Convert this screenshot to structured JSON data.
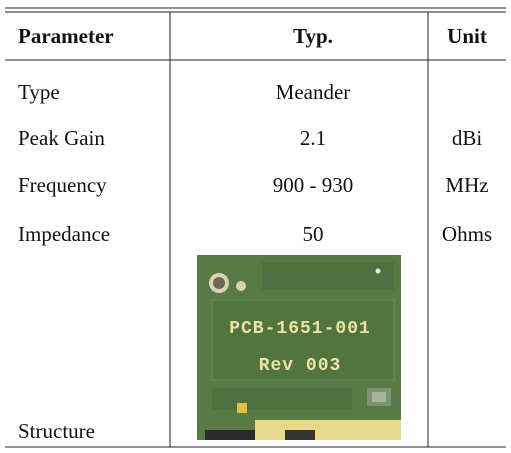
{
  "table": {
    "header": [
      "Parameter",
      "Typ.",
      "Unit"
    ],
    "rows": [
      {
        "parameter": "Type",
        "typ": "Meander"
      },
      {
        "parameter": "Peak Gain",
        "typ": "2.1",
        "unit": "dBi"
      },
      {
        "parameter": "Frequency",
        "typ": "900 - 930",
        "unit": "MHz"
      },
      {
        "parameter": "Impedance",
        "typ": "50",
        "unit": "Ohms"
      },
      {
        "parameter": "Structure",
        "image_text": [
          "PCB-1651-001",
          "Rev 003"
        ]
      }
    ]
  }
}
